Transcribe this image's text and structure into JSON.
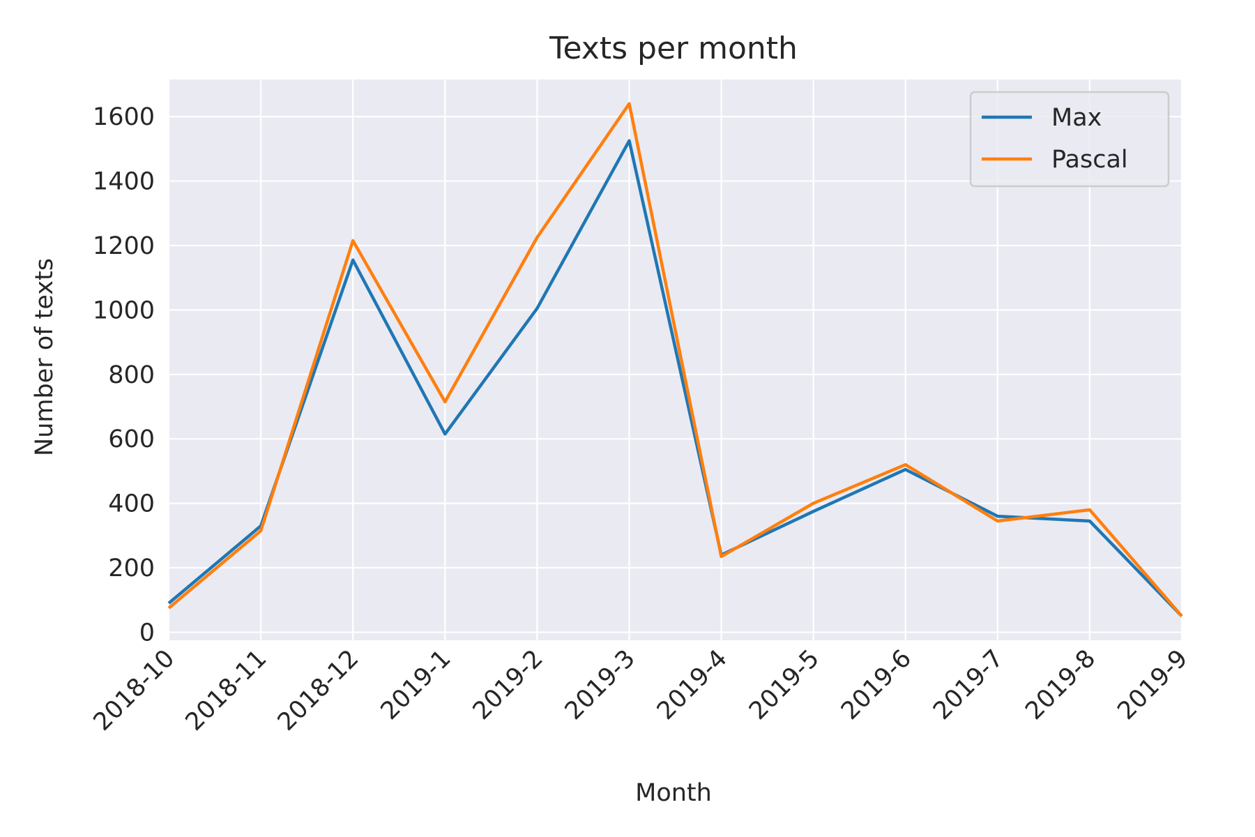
{
  "chart_data": {
    "type": "line",
    "title": "Texts per month",
    "xlabel": "Month",
    "ylabel": "Number of texts",
    "categories": [
      "2018-10",
      "2018-11",
      "2018-12",
      "2019-1",
      "2019-2",
      "2019-3",
      "2019-4",
      "2019-5",
      "2019-6",
      "2019-7",
      "2019-8",
      "2019-9"
    ],
    "series": [
      {
        "name": "Max",
        "color": "#1f77b4",
        "values": [
          90,
          330,
          1155,
          615,
          1005,
          1525,
          240,
          375,
          505,
          360,
          345,
          50
        ]
      },
      {
        "name": "Pascal",
        "color": "#ff7f0e",
        "values": [
          75,
          315,
          1215,
          715,
          1225,
          1640,
          235,
          400,
          520,
          345,
          380,
          50
        ]
      }
    ],
    "yticks": [
      "0",
      "200",
      "400",
      "600",
      "800",
      "1000",
      "1200",
      "1400",
      "1600"
    ],
    "ylim": [
      -25,
      1715
    ],
    "grid": true,
    "legend_position": "top-right",
    "background_color": "#eaeaf2",
    "grid_color": "#ffffff"
  }
}
